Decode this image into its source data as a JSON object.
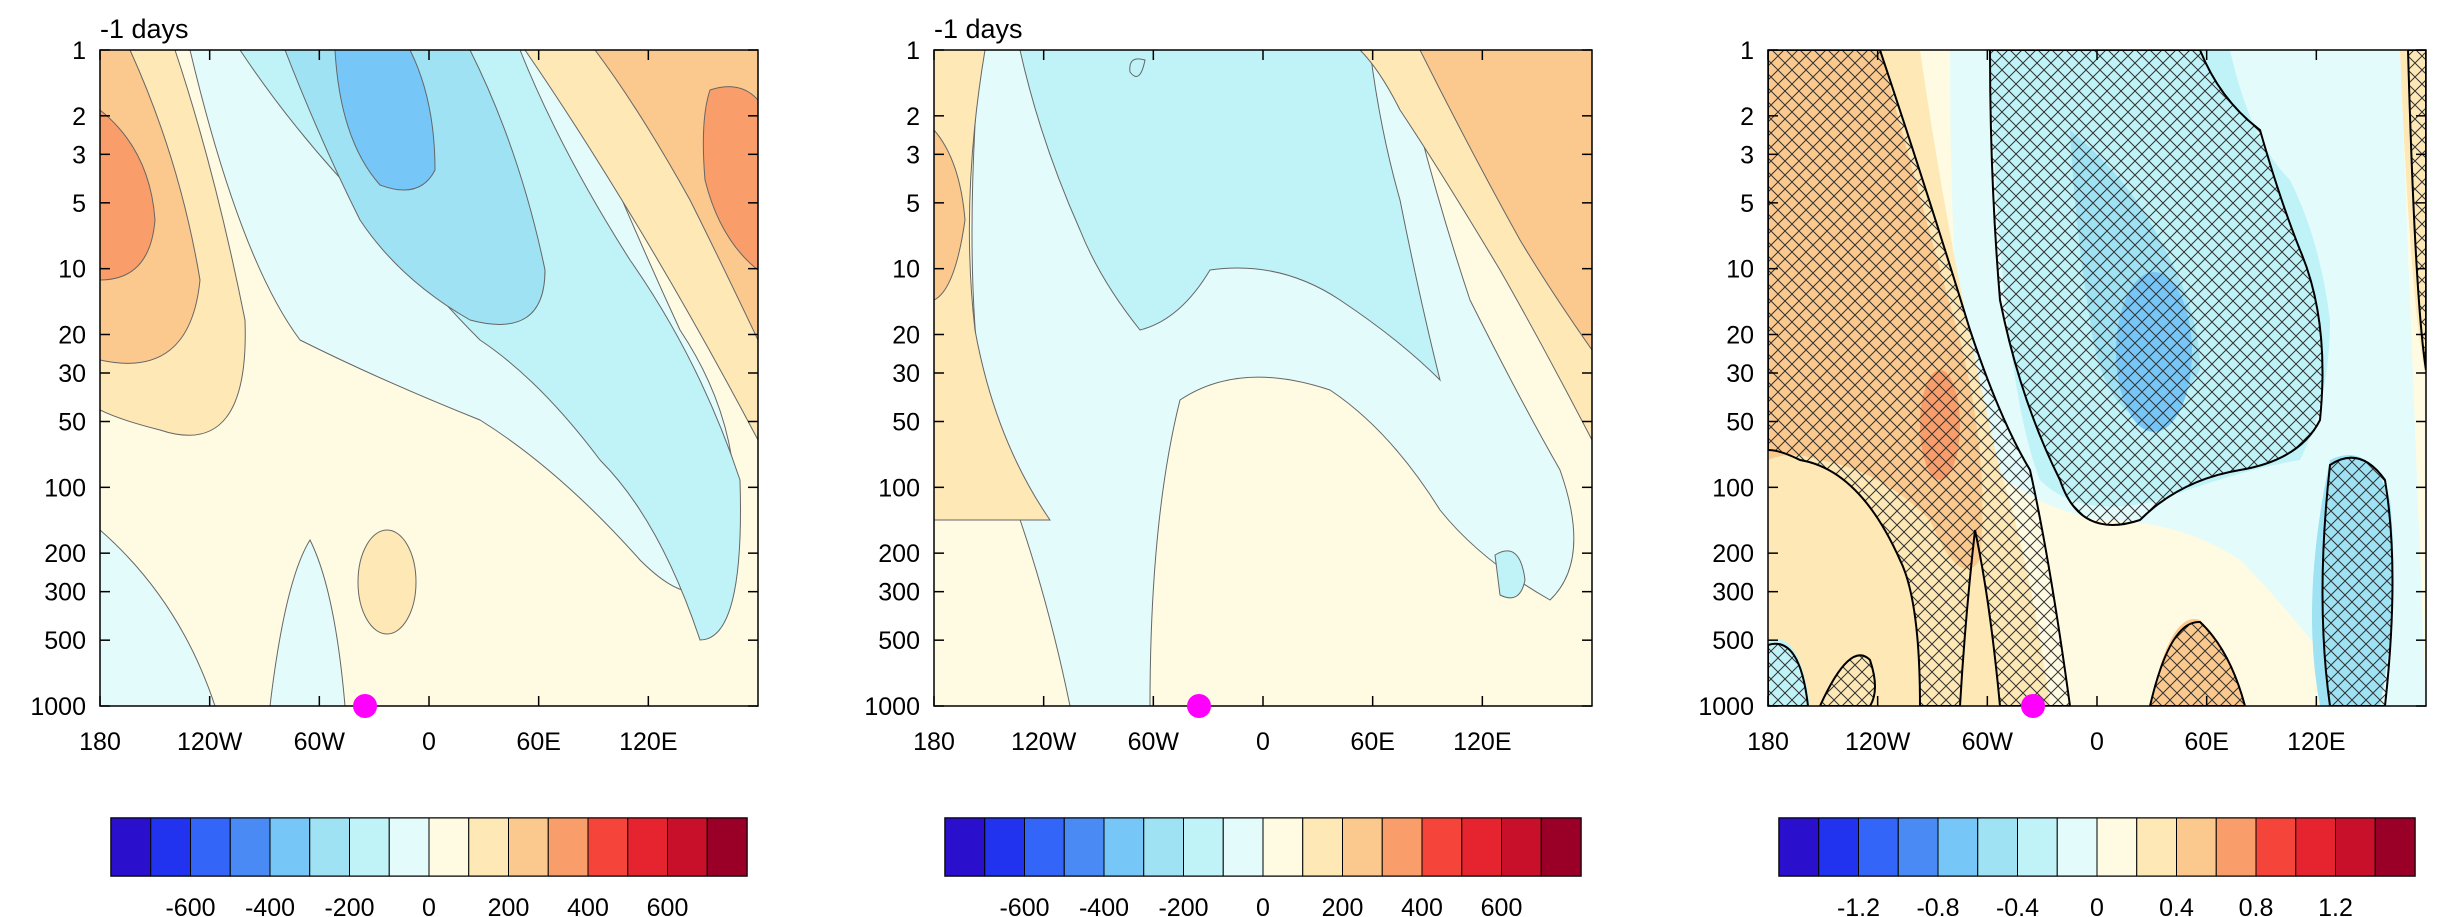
{
  "chart_data": [
    {
      "type": "heatmap",
      "title": "-1 days",
      "x_ticks": [
        "180",
        "120W",
        "60W",
        "0",
        "60E",
        "120E"
      ],
      "x_tick_values": [
        -180,
        -120,
        -60,
        0,
        60,
        120
      ],
      "xlim": [
        -180,
        180
      ],
      "y_ticks": [
        "1",
        "2",
        "3",
        "5",
        "10",
        "20",
        "30",
        "50",
        "100",
        "200",
        "300",
        "500",
        "1000"
      ],
      "y_tick_values": [
        1,
        2,
        3,
        5,
        10,
        20,
        30,
        50,
        100,
        200,
        300,
        500,
        1000
      ],
      "ylim": [
        1,
        1000
      ],
      "y_scale": "log",
      "colorbar_labels": [
        "-600",
        "-400",
        "-200",
        "0",
        "200",
        "400",
        "600"
      ],
      "colorbar_levels": [
        -700,
        -600,
        -500,
        -400,
        -300,
        -200,
        -100,
        0,
        100,
        200,
        300,
        400,
        500,
        600,
        700
      ],
      "marker": {
        "lon": -35,
        "level": 1000,
        "color": "#ff00ff"
      }
    },
    {
      "type": "heatmap",
      "title": "-1 days",
      "x_ticks": [
        "180",
        "120W",
        "60W",
        "0",
        "60E",
        "120E"
      ],
      "x_tick_values": [
        -180,
        -120,
        -60,
        0,
        60,
        120
      ],
      "xlim": [
        -180,
        180
      ],
      "y_ticks": [
        "1",
        "2",
        "3",
        "5",
        "10",
        "20",
        "30",
        "50",
        "100",
        "200",
        "300",
        "500",
        "1000"
      ],
      "y_tick_values": [
        1,
        2,
        3,
        5,
        10,
        20,
        30,
        50,
        100,
        200,
        300,
        500,
        1000
      ],
      "ylim": [
        1,
        1000
      ],
      "y_scale": "log",
      "colorbar_labels": [
        "-600",
        "-400",
        "-200",
        "0",
        "200",
        "400",
        "600"
      ],
      "colorbar_levels": [
        -700,
        -600,
        -500,
        -400,
        -300,
        -200,
        -100,
        0,
        100,
        200,
        300,
        400,
        500,
        600,
        700
      ],
      "marker": {
        "lon": -35,
        "level": 1000,
        "color": "#ff00ff"
      }
    },
    {
      "type": "heatmap",
      "title": "",
      "x_ticks": [
        "180",
        "120W",
        "60W",
        "0",
        "60E",
        "120E"
      ],
      "x_tick_values": [
        -180,
        -120,
        -60,
        0,
        60,
        120
      ],
      "xlim": [
        -180,
        180
      ],
      "y_ticks": [
        "1",
        "2",
        "3",
        "5",
        "10",
        "20",
        "30",
        "50",
        "100",
        "200",
        "300",
        "500",
        "1000"
      ],
      "y_tick_values": [
        1,
        2,
        3,
        5,
        10,
        20,
        30,
        50,
        100,
        200,
        300,
        500,
        1000
      ],
      "ylim": [
        1,
        1000
      ],
      "y_scale": "log",
      "colorbar_labels": [
        "-1.2",
        "-0.8",
        "-0.4",
        "0",
        "0.4",
        "0.8",
        "1.2"
      ],
      "colorbar_levels": [
        -1.4,
        -1.2,
        -1.0,
        -0.8,
        -0.6,
        -0.4,
        -0.2,
        0,
        0.2,
        0.4,
        0.6,
        0.8,
        1.0,
        1.2,
        1.4
      ],
      "hatching": "cross-hatched significance regions",
      "marker": {
        "lon": -35,
        "level": 1000,
        "color": "#ff00ff"
      }
    }
  ],
  "colors": {
    "palette": [
      "#2a10cc",
      "#2233f0",
      "#3366f8",
      "#4a8af4",
      "#76c6f8",
      "#9ee2f4",
      "#bff3f7",
      "#e4fbfb",
      "#fefbe2",
      "#fde8b6",
      "#fbc98e",
      "#f99e6a",
      "#f5443a",
      "#e52430",
      "#c8102a",
      "#9a0027"
    ],
    "contour_line": "#555555",
    "marker": "#ff00ff"
  }
}
